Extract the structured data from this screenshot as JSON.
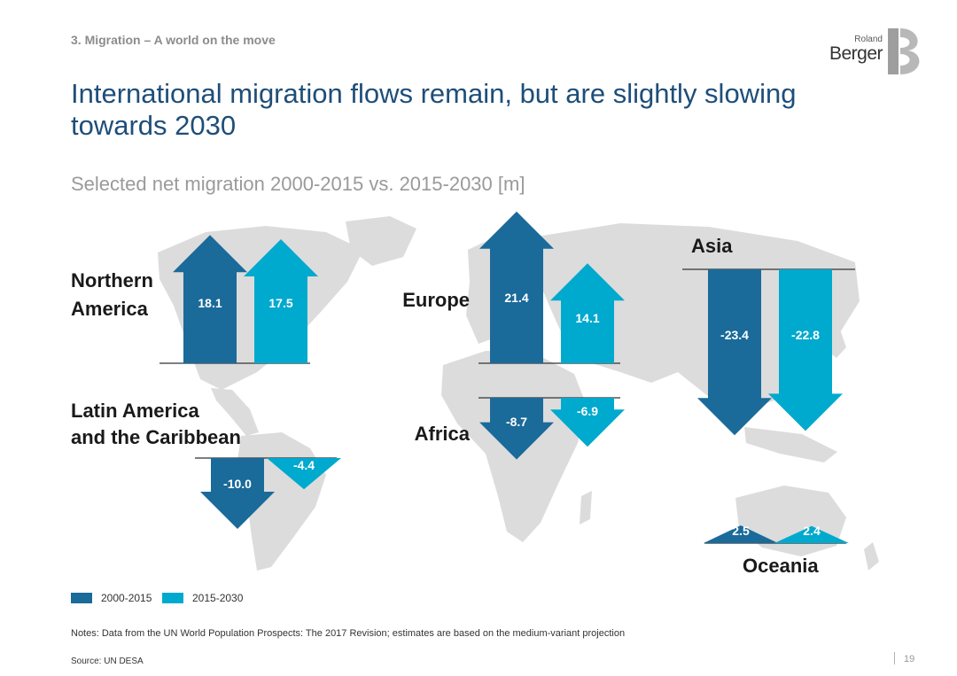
{
  "header": {
    "section": "3. Migration – A world on the move",
    "title": "International migration flows remain, but are slightly slowing towards 2030",
    "logo_line1": "Roland",
    "logo_line2": "Berger"
  },
  "colors": {
    "period_2000_2015": "#1a6a9a",
    "period_2015_2030": "#00a9ce",
    "map": "#dcdcdc",
    "text": "#1a1a1a"
  },
  "chart_data": {
    "type": "bar",
    "title": "Selected net migration 2000-2015 vs. 2015-2030 [m]",
    "series_names": [
      "2000-2015",
      "2015-2030"
    ],
    "regions": [
      {
        "key": "na",
        "name": "Northern America",
        "values": [
          18.1,
          17.5
        ]
      },
      {
        "key": "eu",
        "name": "Europe",
        "values": [
          21.4,
          14.1
        ]
      },
      {
        "key": "as",
        "name": "Asia",
        "values": [
          -23.4,
          -22.8
        ]
      },
      {
        "key": "la",
        "name": "Latin America and the Caribbean",
        "values": [
          -10.0,
          -4.4
        ]
      },
      {
        "key": "af",
        "name": "Africa",
        "values": [
          -8.7,
          -6.9
        ]
      },
      {
        "key": "oc",
        "name": "Oceania",
        "values": [
          2.5,
          2.4
        ]
      }
    ],
    "value_labels": {
      "na": [
        "18.1",
        "17.5"
      ],
      "eu": [
        "21.4",
        "14.1"
      ],
      "as": [
        "-23.4",
        "-22.8"
      ],
      "la": [
        "-10.0",
        "-4.4"
      ],
      "af": [
        "-8.7",
        "-6.9"
      ],
      "oc": [
        "2.5",
        "2.4"
      ]
    },
    "region_labels": {
      "na": [
        "Northern",
        "America"
      ],
      "eu": [
        "Europe"
      ],
      "as": [
        "Asia"
      ],
      "la": [
        "Latin America",
        "and the Caribbean"
      ],
      "af": [
        "Africa"
      ],
      "oc": [
        "Oceania"
      ]
    }
  },
  "legend": {
    "item1": "2000-2015",
    "item2": "2015-2030"
  },
  "footer": {
    "notes": "Notes: Data from the UN World Population Prospects: The 2017 Revision; estimates are based on the medium-variant projection",
    "source": "Source: UN DESA",
    "page": "19"
  }
}
